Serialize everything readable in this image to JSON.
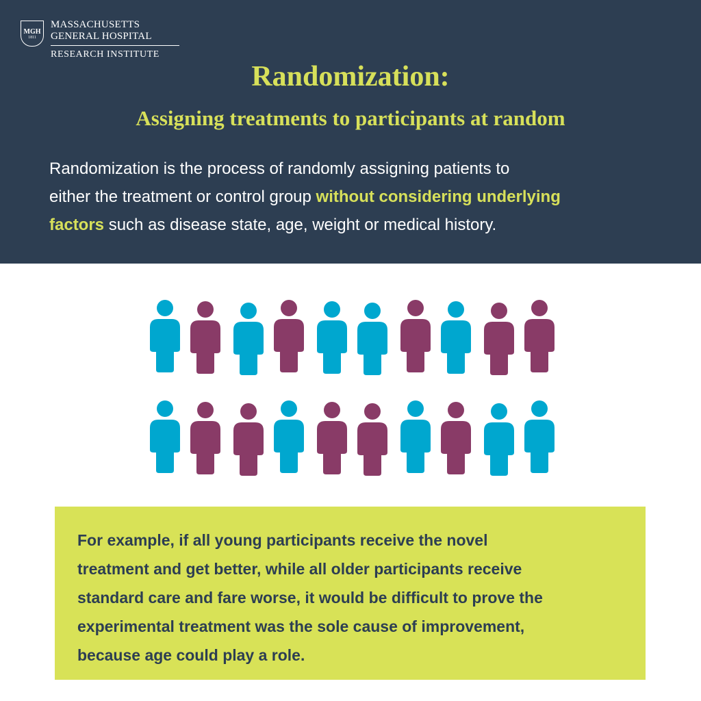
{
  "logo": {
    "seal": "MGH",
    "year": "1811",
    "line1": "MASSACHUSETTS",
    "line2": "GENERAL HOSPITAL",
    "line3": "RESEARCH INSTITUTE"
  },
  "title": "Randomization:",
  "subtitle": "Assigning treatments to participants at random",
  "intro": {
    "lines": [
      [
        {
          "text": "Randomization is the process of randomly assigning patients to",
          "highlight": false
        }
      ],
      [
        {
          "text": "either the treatment or control group ",
          "highlight": false
        },
        {
          "text": "without considering underlying",
          "highlight": true
        }
      ],
      [
        {
          "text": "factors",
          "highlight": true
        },
        {
          "text": " such as disease state, age, weight or medical history.",
          "highlight": false
        }
      ]
    ]
  },
  "figures": [
    [
      "#00a7cf",
      "#893b67",
      "#00a7cf",
      "#893b67",
      "#00a7cf",
      "#00a7cf",
      "#893b67",
      "#00a7cf",
      "#893b67",
      "#893b67"
    ],
    [
      "#00a7cf",
      "#893b67",
      "#893b67",
      "#00a7cf",
      "#893b67",
      "#893b67",
      "#00a7cf",
      "#893b67",
      "#00a7cf",
      "#00a7cf"
    ]
  ],
  "example": {
    "lines": [
      "For example, if all young participants receive the novel",
      "treatment and get better, while all older participants receive",
      "standard care and fare worse, it would be difficult to prove the",
      "experimental treatment was the sole cause of improvement,",
      "because age could play a role."
    ]
  }
}
